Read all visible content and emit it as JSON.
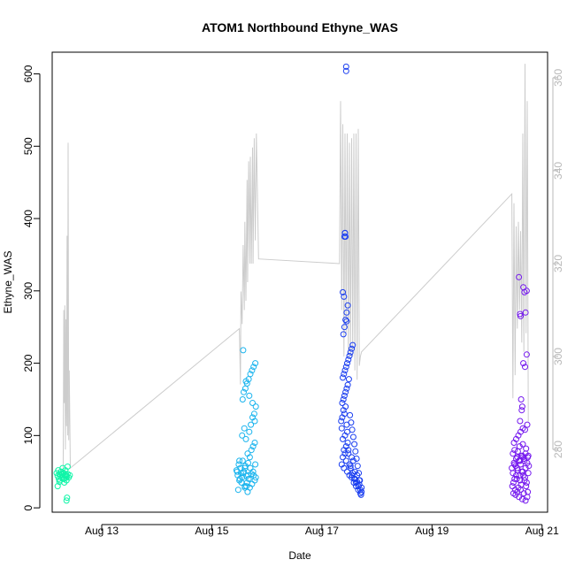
{
  "chart_data": {
    "type": "scatter",
    "title": "ATOM1 Northbound Ethyne_WAS",
    "xlabel": "Date",
    "ylabel": "Ethyne_WAS",
    "x_unit": "day of August",
    "xlim": [
      12.1,
      21.1
    ],
    "ylim": [
      -6,
      630
    ],
    "y_ticks": [
      0,
      100,
      200,
      300,
      400,
      500,
      600
    ],
    "x_ticks": [
      13,
      15,
      17,
      19,
      21
    ],
    "x_tick_labels": [
      "Aug 13",
      "Aug 15",
      "Aug 17",
      "Aug 19",
      "Aug 21"
    ],
    "y2_ticks": [
      280,
      300,
      320,
      340,
      360
    ],
    "y2lim": [
      266.5,
      365.5
    ],
    "grid": false,
    "legend": "none",
    "secondary_series": {
      "axis": "right",
      "color": "#cccccc",
      "x": [
        12.3,
        12.31,
        12.32,
        12.33,
        12.34,
        12.35,
        12.36,
        12.37,
        12.38,
        12.39,
        12.4,
        12.41,
        12.43,
        15.5,
        15.52,
        15.53,
        15.55,
        15.57,
        15.59,
        15.6,
        15.62,
        15.64,
        15.65,
        15.67,
        15.69,
        15.7,
        15.72,
        15.74,
        15.75,
        15.77,
        15.79,
        15.81,
        15.85,
        17.32,
        17.34,
        17.36,
        17.38,
        17.4,
        17.42,
        17.44,
        17.46,
        17.48,
        17.5,
        17.52,
        17.54,
        17.56,
        17.58,
        17.6,
        17.62,
        17.64,
        17.66,
        17.68,
        17.7,
        17.72,
        20.45,
        20.47,
        20.49,
        20.51,
        20.53,
        20.55,
        20.57,
        20.59,
        20.61,
        20.63,
        20.65,
        20.67,
        20.69,
        20.71,
        20.73,
        20.75
      ],
      "y": [
        275,
        310,
        290,
        311,
        280,
        308,
        285,
        326,
        283,
        346,
        282,
        297,
        276,
        306,
        294,
        314,
        307,
        324,
        310,
        329,
        312,
        338,
        316,
        342,
        320,
        343,
        320,
        345,
        320,
        347,
        325,
        348,
        321,
        320,
        355,
        310,
        350,
        300,
        348,
        305,
        348,
        300,
        346,
        300,
        347,
        300,
        348,
        297,
        348,
        295,
        349,
        298,
        300,
        301,
        335,
        291,
        333,
        296,
        328,
        306,
        329,
        310,
        327,
        303,
        348,
        301,
        363,
        305,
        355,
        286
      ]
    },
    "series": [
      {
        "color": "#10f5a8",
        "x": [
          12.18,
          12.2,
          12.21,
          12.22,
          12.23,
          12.24,
          12.25,
          12.26,
          12.27,
          12.28,
          12.29,
          12.3,
          12.31,
          12.32,
          12.33,
          12.34,
          12.35,
          12.36,
          12.37,
          12.38,
          12.4,
          12.42,
          12.2,
          12.23,
          12.26,
          12.29,
          12.32,
          12.35,
          12.38,
          12.36,
          12.37
        ],
        "y": [
          48,
          44,
          52,
          40,
          47,
          38,
          45,
          50,
          42,
          46,
          55,
          40,
          48,
          35,
          44,
          52,
          46,
          38,
          43,
          57,
          42,
          45,
          30,
          36,
          50,
          48,
          40,
          44,
          47,
          10,
          14
        ]
      },
      {
        "color": "#1ab4ee",
        "x": [
          15.45,
          15.47,
          15.49,
          15.5,
          15.52,
          15.53,
          15.55,
          15.56,
          15.58,
          15.6,
          15.61,
          15.63,
          15.64,
          15.66,
          15.67,
          15.69,
          15.7,
          15.72,
          15.73,
          15.75,
          15.76,
          15.78,
          15.79,
          15.8,
          15.48,
          15.51,
          15.54,
          15.57,
          15.6,
          15.63,
          15.66,
          15.69,
          15.72,
          15.75,
          15.78,
          15.46,
          15.5,
          15.55,
          15.59,
          15.62,
          15.65,
          15.68,
          15.71,
          15.74,
          15.77,
          15.8,
          15.56,
          15.58,
          15.61,
          15.64,
          15.67,
          15.7,
          15.73,
          15.76,
          15.79,
          15.57,
          15.62,
          15.68,
          15.74,
          15.78,
          15.6,
          15.65
        ],
        "y": [
          52,
          45,
          60,
          38,
          55,
          48,
          42,
          65,
          50,
          30,
          58,
          44,
          35,
          62,
          40,
          28,
          55,
          47,
          33,
          50,
          45,
          38,
          60,
          42,
          25,
          40,
          35,
          48,
          55,
          30,
          45,
          70,
          80,
          85,
          90,
          50,
          65,
          100,
          110,
          95,
          75,
          105,
          115,
          125,
          130,
          140,
          150,
          160,
          165,
          172,
          178,
          185,
          190,
          195,
          200,
          218,
          175,
          155,
          145,
          120,
          28,
          22
        ]
      },
      {
        "color": "#1a3ef0",
        "x": [
          17.35,
          17.36,
          17.37,
          17.38,
          17.39,
          17.4,
          17.41,
          17.42,
          17.43,
          17.44,
          17.45,
          17.46,
          17.47,
          17.48,
          17.5,
          17.52,
          17.54,
          17.55,
          17.57,
          17.59,
          17.6,
          17.62,
          17.64,
          17.66,
          17.68,
          17.7,
          17.72,
          17.36,
          17.38,
          17.4,
          17.42,
          17.44,
          17.46,
          17.48,
          17.5,
          17.52,
          17.54,
          17.56,
          17.58,
          17.6,
          17.62,
          17.64,
          17.66,
          17.68,
          17.7,
          17.72,
          17.37,
          17.39,
          17.41,
          17.43,
          17.45,
          17.47,
          17.49,
          17.51,
          17.53,
          17.55,
          17.57,
          17.59,
          17.61,
          17.63,
          17.65,
          17.67,
          17.69,
          17.71,
          17.38,
          17.4,
          17.42,
          17.44,
          17.46,
          17.48,
          17.5,
          17.52,
          17.54,
          17.56,
          17.39,
          17.41,
          17.43,
          17.45,
          17.47,
          17.38,
          17.4,
          17.41,
          17.42,
          17.42,
          17.43,
          17.44,
          17.44,
          17.45
        ],
        "y": [
          120,
          110,
          145,
          95,
          150,
          80,
          130,
          100,
          140,
          85,
          115,
          105,
          90,
          75,
          60,
          55,
          70,
          45,
          65,
          40,
          50,
          35,
          45,
          30,
          38,
          25,
          28,
          60,
          70,
          55,
          75,
          65,
          50,
          80,
          45,
          58,
          42,
          48,
          35,
          40,
          30,
          36,
          25,
          32,
          20,
          22,
          125,
          135,
          155,
          160,
          165,
          170,
          178,
          128,
          118,
          108,
          98,
          88,
          78,
          68,
          58,
          48,
          38,
          18,
          180,
          185,
          190,
          195,
          200,
          205,
          210,
          215,
          220,
          225,
          240,
          250,
          260,
          270,
          280,
          298,
          292,
          375,
          380,
          380,
          375,
          604,
          610,
          258
        ]
      },
      {
        "color": "#7418ee",
        "x": [
          20.45,
          20.47,
          20.49,
          20.5,
          20.52,
          20.53,
          20.55,
          20.56,
          20.58,
          20.6,
          20.61,
          20.63,
          20.64,
          20.66,
          20.67,
          20.69,
          20.7,
          20.72,
          20.73,
          20.75,
          20.76,
          20.46,
          20.48,
          20.51,
          20.54,
          20.57,
          20.59,
          20.62,
          20.65,
          20.68,
          20.71,
          20.74,
          20.47,
          20.5,
          20.53,
          20.56,
          20.59,
          20.62,
          20.65,
          20.68,
          20.71,
          20.74,
          20.48,
          20.52,
          20.55,
          20.58,
          20.61,
          20.64,
          20.67,
          20.7,
          20.73,
          20.49,
          20.53,
          20.57,
          20.61,
          20.65,
          20.69,
          20.73,
          20.5,
          20.55,
          20.6,
          20.65,
          20.7,
          20.75,
          20.58,
          20.6,
          20.61,
          20.62,
          20.64,
          20.66,
          20.68,
          20.7,
          20.72,
          20.6,
          20.63,
          20.66,
          20.69,
          20.72
        ],
        "y": [
          55,
          48,
          62,
          40,
          58,
          45,
          70,
          52,
          65,
          38,
          60,
          50,
          72,
          45,
          68,
          42,
          55,
          35,
          62,
          48,
          58,
          30,
          35,
          25,
          40,
          28,
          45,
          32,
          50,
          38,
          30,
          22,
          75,
          80,
          68,
          78,
          85,
          72,
          88,
          65,
          82,
          70,
          20,
          18,
          22,
          15,
          25,
          12,
          20,
          10,
          15,
          90,
          95,
          100,
          105,
          110,
          108,
          115,
          60,
          55,
          65,
          70,
          75,
          72,
          319,
          268,
          265,
          150,
          140,
          305,
          298,
          270,
          212,
          120,
          135,
          200,
          195,
          300
        ]
      }
    ]
  }
}
